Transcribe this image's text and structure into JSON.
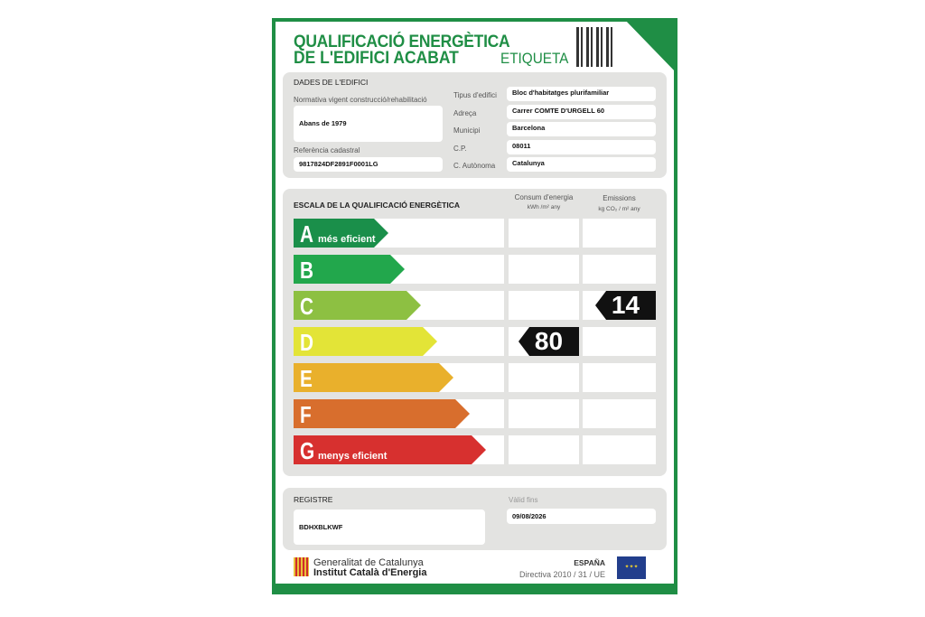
{
  "header": {
    "title_line1": "QUALIFICACIÓ ENERGÈTICA",
    "title_line2": "DE L'EDIFICI ACABAT",
    "label": "ETIQUETA"
  },
  "building": {
    "section": "DADES DE L'EDIFICI",
    "normativa_label": "Normativa vigent construcció/rehabilitació",
    "normativa": "Abans de 1979",
    "ref_label": "Referència cadastral",
    "ref": "9817824DF2891F0001LG",
    "fields": [
      {
        "label": "Tipus d'edifici",
        "value": "Bloc d'habitatges plurifamiliar"
      },
      {
        "label": "Adreça",
        "value": "Carrer COMTE D'URGELL 60"
      },
      {
        "label": "Municipi",
        "value": "Barcelona"
      },
      {
        "label": "C.P.",
        "value": "08011"
      },
      {
        "label": "C. Autònoma",
        "value": "Catalunya"
      }
    ]
  },
  "scale": {
    "section": "ESCALA DE LA QUALIFICACIÓ ENERGÈTICA",
    "consum_label": "Consum d'energia",
    "consum_unit": "kWh /m² any",
    "emis_label": "Emissions",
    "emis_unit": "kg CO₂ / m² any",
    "classes": [
      {
        "letter": "A",
        "sub": "més eficient",
        "color": "#1a8f4a"
      },
      {
        "letter": "B",
        "sub": "",
        "color": "#22a74c"
      },
      {
        "letter": "C",
        "sub": "",
        "color": "#8dc042"
      },
      {
        "letter": "D",
        "sub": "",
        "color": "#e3e437"
      },
      {
        "letter": "E",
        "sub": "",
        "color": "#e9b02c"
      },
      {
        "letter": "F",
        "sub": "",
        "color": "#d86e2d"
      },
      {
        "letter": "G",
        "sub": "menys eficient",
        "color": "#d7302f"
      }
    ],
    "consum_value": "80",
    "consum_class": "D",
    "emis_value": "14",
    "emis_class": "C"
  },
  "registre": {
    "label": "REGISTRE",
    "value": "BDHXBLKWF",
    "valid_label": "Vàlid fins",
    "valid": "09/08/2026"
  },
  "footer": {
    "gov": "Generalitat de Catalunya",
    "inst": "Institut Català d'Energia",
    "country": "ESPAÑA",
    "directive": "Directiva 2010 / 31 / UE"
  }
}
